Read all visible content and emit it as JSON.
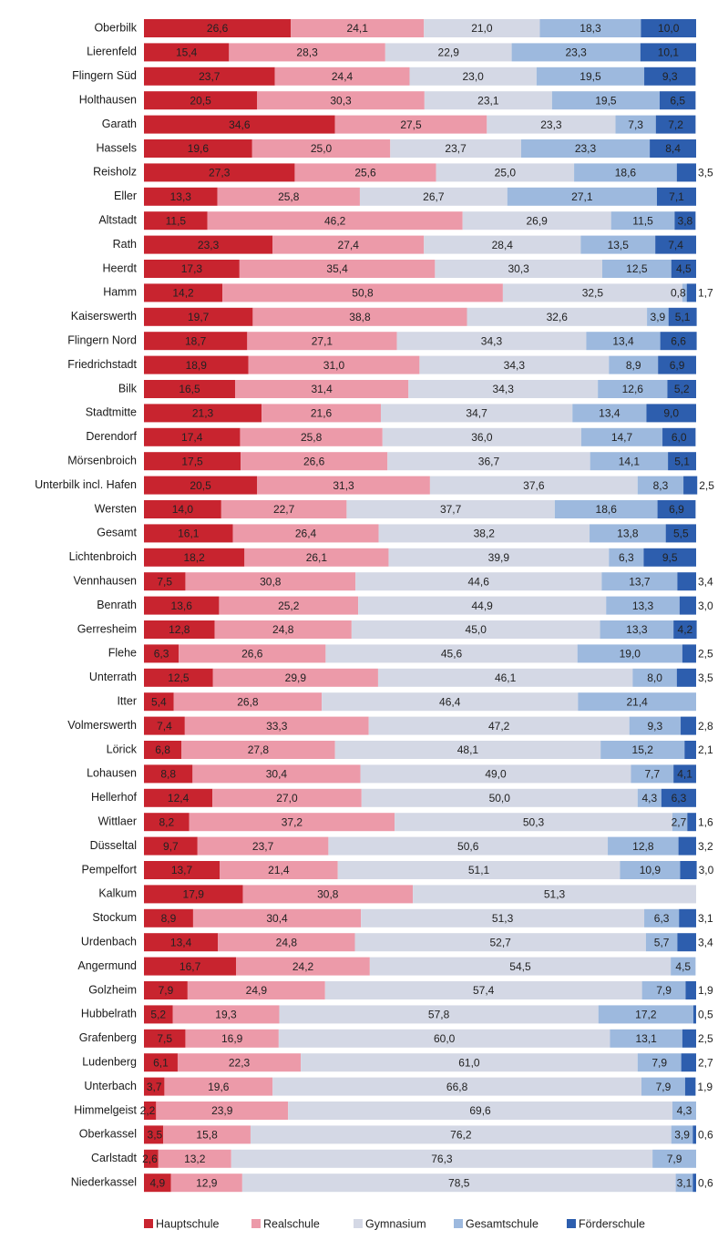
{
  "chart_data": {
    "type": "stacked-bar-horizontal",
    "xlim": [
      0,
      100
    ],
    "categories": [
      "Oberbilk",
      "Lierenfeld",
      "Flingern Süd",
      "Holthausen",
      "Garath",
      "Hassels",
      "Reisholz",
      "Eller",
      "Altstadt",
      "Rath",
      "Heerdt",
      "Hamm",
      "Kaiserswerth",
      "Flingern Nord",
      "Friedrichstadt",
      "Bilk",
      "Stadtmitte",
      "Derendorf",
      "Mörsenbroich",
      "Unterbilk incl. Hafen",
      "Wersten",
      "Gesamt",
      "Lichtenbroich",
      "Vennhausen",
      "Benrath",
      "Gerresheim",
      "Flehe",
      "Unterrath",
      "Itter",
      "Volmerswerth",
      "Lörick",
      "Lohausen",
      "Hellerhof",
      "Wittlaer",
      "Düsseltal",
      "Pempelfort",
      "Kalkum",
      "Stockum",
      "Urdenbach",
      "Angermund",
      "Golzheim",
      "Hubbelrath",
      "Grafenberg",
      "Ludenberg",
      "Unterbach",
      "Himmelgeist",
      "Oberkassel",
      "Carlstadt",
      "Niederkassel"
    ],
    "series": [
      {
        "name": "Hauptschule",
        "color": "#c8242f",
        "label_color": "#ffffff",
        "values": [
          26.6,
          15.4,
          23.7,
          20.5,
          34.6,
          19.6,
          27.3,
          13.3,
          11.5,
          23.3,
          17.3,
          14.2,
          19.7,
          18.7,
          18.9,
          16.5,
          21.3,
          17.4,
          17.5,
          20.5,
          14.0,
          16.1,
          18.2,
          7.5,
          13.6,
          12.8,
          6.3,
          12.5,
          5.4,
          7.4,
          6.8,
          8.8,
          12.4,
          8.2,
          9.7,
          13.7,
          17.9,
          8.9,
          13.4,
          16.7,
          7.9,
          5.2,
          7.5,
          6.1,
          3.7,
          2.2,
          3.5,
          2.6,
          4.9
        ],
        "value_labels": [
          "26,6",
          "15,4",
          "23,7",
          "20,5",
          "34,6",
          "19,6",
          "27,3",
          "13,3",
          "11,5",
          "23,3",
          "17,3",
          "14,2",
          "19,7",
          "18,7",
          "18,9",
          "16,5",
          "21,3",
          "17,4",
          "17,5",
          "20,5",
          "14,0",
          "16,1",
          "18,2",
          "7,5",
          "13,6",
          "12,8",
          "6,3",
          "12,5",
          "5,4",
          "7,4",
          "6,8",
          "8,8",
          "12,4",
          "8,2",
          "9,7",
          "13,7",
          "17,9",
          "8,9",
          "13,4",
          "16,7",
          "7,9",
          "5,2",
          "7,5",
          "6,1",
          "3,7",
          "2,2",
          "3,5",
          "2,6",
          "4,9"
        ]
      },
      {
        "name": "Realschule",
        "color": "#ec9aa9",
        "label_color": "#222222",
        "values": [
          24.1,
          28.3,
          24.4,
          30.3,
          27.5,
          25.0,
          25.6,
          25.8,
          46.2,
          27.4,
          35.4,
          50.8,
          38.8,
          27.1,
          31.0,
          31.4,
          21.6,
          25.8,
          26.6,
          31.3,
          22.7,
          26.4,
          26.1,
          30.8,
          25.2,
          24.8,
          26.6,
          29.9,
          26.8,
          33.3,
          27.8,
          30.4,
          27.0,
          37.2,
          23.7,
          21.4,
          30.8,
          30.4,
          24.8,
          24.2,
          24.9,
          19.3,
          16.9,
          22.3,
          19.6,
          23.9,
          15.8,
          13.2,
          12.9
        ],
        "value_labels": [
          "24,1",
          "28,3",
          "24,4",
          "30,3",
          "27,5",
          "25,0",
          "25,6",
          "25,8",
          "46,2",
          "27,4",
          "35,4",
          "50,8",
          "38,8",
          "27,1",
          "31,0",
          "31,4",
          "21,6",
          "25,8",
          "26,6",
          "31,3",
          "22,7",
          "26,4",
          "26,1",
          "30,8",
          "25,2",
          "24,8",
          "26,6",
          "29,9",
          "26,8",
          "33,3",
          "27,8",
          "30,4",
          "27,0",
          "37,2",
          "23,7",
          "21,4",
          "30,8",
          "30,4",
          "24,8",
          "24,2",
          "24,9",
          "19,3",
          "16,9",
          "22,3",
          "19,6",
          "23,9",
          "15,8",
          "13,2",
          "12,9"
        ]
      },
      {
        "name": "Gymnasium",
        "color": "#d4d8e5",
        "label_color": "#222222",
        "values": [
          21.0,
          22.9,
          23.0,
          23.1,
          23.3,
          23.7,
          25.0,
          26.7,
          26.9,
          28.4,
          30.3,
          32.5,
          32.6,
          34.3,
          34.3,
          34.3,
          34.7,
          36.0,
          36.7,
          37.6,
          37.7,
          38.2,
          39.9,
          44.6,
          44.9,
          45.0,
          45.6,
          46.1,
          46.4,
          47.2,
          48.1,
          49.0,
          50.0,
          50.3,
          50.6,
          51.1,
          51.3,
          51.3,
          52.7,
          54.5,
          57.4,
          57.8,
          60.0,
          61.0,
          66.8,
          69.6,
          76.2,
          76.3,
          78.5
        ],
        "value_labels": [
          "21,0",
          "22,9",
          "23,0",
          "23,1",
          "23,3",
          "23,7",
          "25,0",
          "26,7",
          "26,9",
          "28,4",
          "30,3",
          "32,5",
          "32,6",
          "34,3",
          "34,3",
          "34,3",
          "34,7",
          "36,0",
          "36,7",
          "37,6",
          "37,7",
          "38,2",
          "39,9",
          "44,6",
          "44,9",
          "45,0",
          "45,6",
          "46,1",
          "46,4",
          "47,2",
          "48,1",
          "49,0",
          "50,0",
          "50,3",
          "50,6",
          "51,1",
          "51,3",
          "51,3",
          "52,7",
          "54,5",
          "57,4",
          "57,8",
          "60,0",
          "61,0",
          "66,8",
          "69,6",
          "76,2",
          "76,3",
          "78,5"
        ]
      },
      {
        "name": "Gesamtschule",
        "color": "#9db9de",
        "label_color": "#222222",
        "values": [
          18.3,
          23.3,
          19.5,
          19.5,
          7.3,
          23.3,
          18.6,
          27.1,
          11.5,
          13.5,
          12.5,
          0.8,
          3.9,
          13.4,
          8.9,
          12.6,
          13.4,
          14.7,
          14.1,
          8.3,
          18.6,
          13.8,
          6.3,
          13.7,
          13.3,
          13.3,
          19.0,
          8.0,
          21.4,
          9.3,
          15.2,
          7.7,
          4.3,
          2.7,
          12.8,
          10.9,
          null,
          6.3,
          5.7,
          4.5,
          7.9,
          17.2,
          13.1,
          7.9,
          7.9,
          4.3,
          3.9,
          7.9,
          3.1
        ],
        "value_labels": [
          "18,3",
          "23,3",
          "19,5",
          "19,5",
          "7,3",
          "23,3",
          "18,6",
          "27,1",
          "11,5",
          "13,5",
          "12,5",
          "0,8",
          "3,9",
          "13,4",
          "8,9",
          "12,6",
          "13,4",
          "14,7",
          "14,1",
          "8,3",
          "18,6",
          "13,8",
          "6,3",
          "13,7",
          "13,3",
          "13,3",
          "19,0",
          "8,0",
          "21,4",
          "9,3",
          "15,2",
          "7,7",
          "4,3",
          "2,7",
          "12,8",
          "10,9",
          null,
          "6,3",
          "5,7",
          "4,5",
          "7,9",
          "17,2",
          "13,1",
          "7,9",
          "7,9",
          "4,3",
          "3,9",
          "7,9",
          "3,1"
        ]
      },
      {
        "name": "Förderschule",
        "color": "#2d5eae",
        "label_color": "#ffffff",
        "values": [
          10.0,
          10.1,
          9.3,
          6.5,
          7.2,
          8.4,
          3.5,
          7.1,
          3.8,
          7.4,
          4.5,
          1.7,
          5.1,
          6.6,
          6.9,
          5.2,
          9.0,
          6.0,
          5.1,
          2.5,
          6.9,
          5.5,
          9.5,
          3.4,
          3.0,
          4.2,
          2.5,
          3.5,
          null,
          2.8,
          2.1,
          4.1,
          6.3,
          1.6,
          3.2,
          3.0,
          null,
          3.1,
          3.4,
          null,
          1.9,
          0.5,
          2.5,
          2.7,
          1.9,
          null,
          0.6,
          null,
          0.6
        ],
        "value_labels": [
          "10,0",
          "10,1",
          "9,3",
          "6,5",
          "7,2",
          "8,4",
          "3,5",
          "7,1",
          "3,8",
          "7,4",
          "4,5",
          "1,7",
          "5,1",
          "6,6",
          "6,9",
          "5,2",
          "9,0",
          "6,0",
          "5,1",
          "2,5",
          "6,9",
          "5,5",
          "9,5",
          "3,4",
          "3,0",
          "4,2",
          "2,5",
          "3,5",
          null,
          "2,8",
          "2,1",
          "4,1",
          "6,3",
          "1,6",
          "3,2",
          "3,0",
          null,
          "3,1",
          "3,4",
          null,
          "1,9",
          "0,5",
          "2,5",
          "2,7",
          "1,9",
          null,
          "0,6",
          null,
          "0,6"
        ]
      }
    ]
  }
}
